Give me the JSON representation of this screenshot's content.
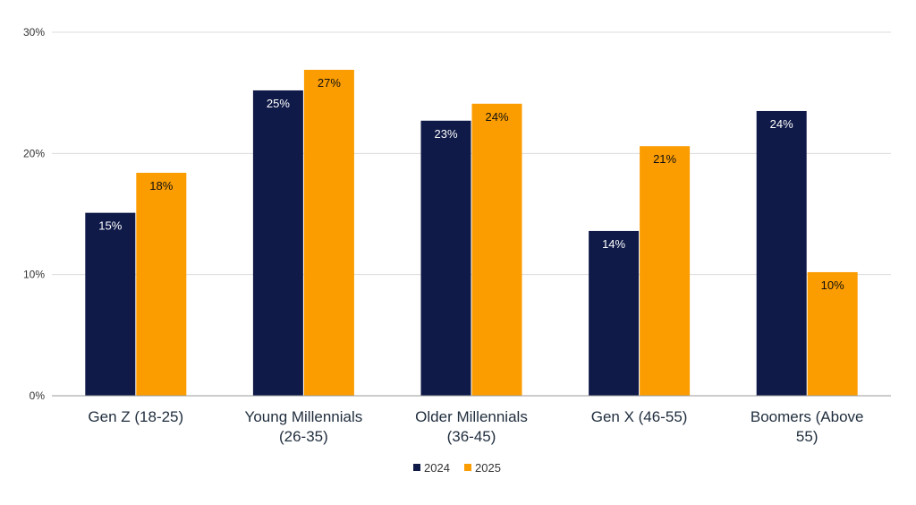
{
  "chart_data": {
    "type": "bar",
    "categories": [
      "Gen Z (18-25)",
      "Young Millennials (26-35)",
      "Older Millennials (36-45)",
      "Gen X (46-55)",
      "Boomers (Above 55)"
    ],
    "category_lines": [
      [
        "Gen Z (18-25)"
      ],
      [
        "Young Millennials",
        "(26-35)"
      ],
      [
        "Older Millennials",
        "(36-45)"
      ],
      [
        "Gen X (46-55)"
      ],
      [
        "Boomers (Above",
        "55)"
      ]
    ],
    "series": [
      {
        "name": "2024",
        "color": "#0f1a48",
        "label_color": "#ffffff",
        "values": [
          15.1,
          25.2,
          22.7,
          13.6,
          23.5
        ],
        "labels": [
          "15%",
          "25%",
          "23%",
          "14%",
          "24%"
        ]
      },
      {
        "name": "2025",
        "color": "#fb9c00",
        "label_color": "#111111",
        "values": [
          18.4,
          26.9,
          24.1,
          20.6,
          10.2
        ],
        "labels": [
          "18%",
          "27%",
          "24%",
          "21%",
          "10%"
        ]
      }
    ],
    "ylim": [
      0,
      30
    ],
    "yticks": [
      0,
      10,
      20,
      30
    ],
    "ytick_labels": [
      "0%",
      "10%",
      "20%",
      "30%"
    ],
    "grid": true,
    "legend_position": "bottom",
    "title": "",
    "xlabel": "",
    "ylabel": ""
  }
}
